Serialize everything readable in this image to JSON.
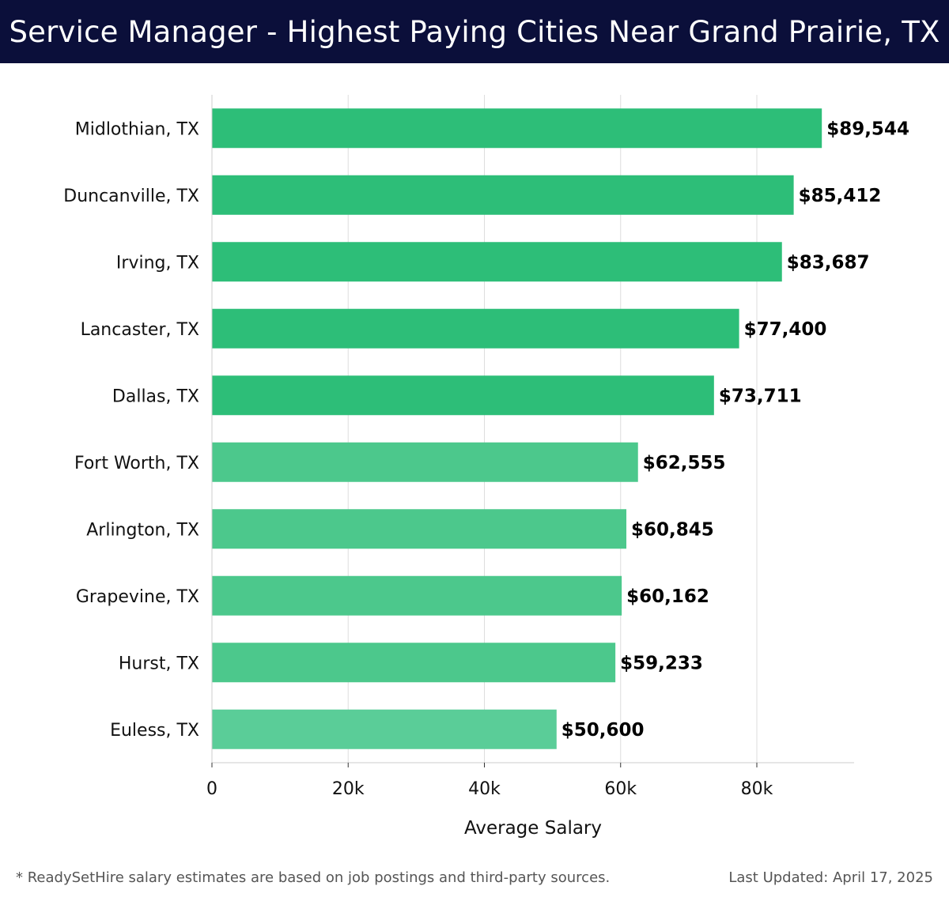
{
  "header": {
    "title": "Service Manager - Highest Paying Cities Near Grand Prairie, TX"
  },
  "footer": {
    "note": "* ReadySetHire salary estimates are based on job postings and third-party sources.",
    "updated": "Last Updated: April 17, 2025"
  },
  "chart_data": {
    "type": "bar",
    "orientation": "horizontal",
    "title": "Service Manager - Highest Paying Cities Near Grand Prairie, TX",
    "xlabel": "Average Salary",
    "ylabel": "",
    "xlim": [
      0,
      94000
    ],
    "xticks": [
      0,
      20000,
      40000,
      60000,
      80000
    ],
    "xtick_labels": [
      "0",
      "20k",
      "40k",
      "60k",
      "80k"
    ],
    "grid": true,
    "categories": [
      "Midlothian, TX",
      "Duncanville, TX",
      "Irving, TX",
      "Lancaster, TX",
      "Dallas, TX",
      "Fort Worth, TX",
      "Arlington, TX",
      "Grapevine, TX",
      "Hurst, TX",
      "Euless, TX"
    ],
    "values": [
      89544,
      85412,
      83687,
      77400,
      73711,
      62555,
      60845,
      60162,
      59233,
      50600
    ],
    "value_labels": [
      "$89,544",
      "$85,412",
      "$83,687",
      "$77,400",
      "$73,711",
      "$62,555",
      "$60,845",
      "$60,162",
      "$59,233",
      "$50,600"
    ],
    "colors": {
      "top": "#2dbe78",
      "mid": "#4cc88c",
      "low": "#5acd98",
      "grid": "#dddddd",
      "axis": "#cccccc",
      "text": "#111111"
    }
  }
}
